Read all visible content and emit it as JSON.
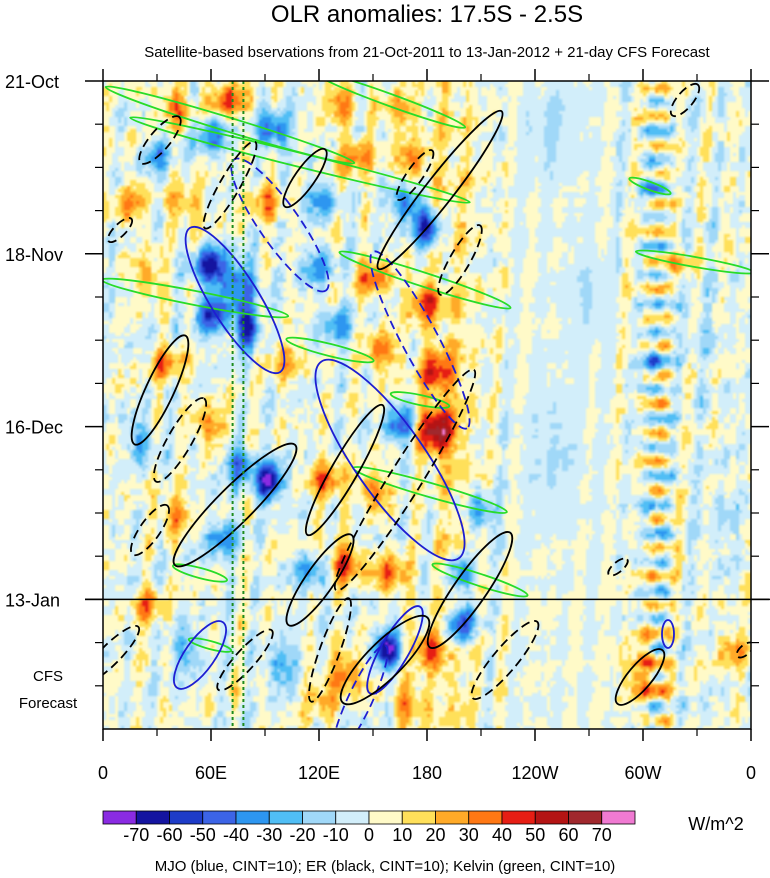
{
  "chart_data": {
    "type": "heatmap",
    "title": "OLR anomalies: 17.5S - 2.5S",
    "subtitle": "Satellite-based bservations from 21-Oct-2011 to 13-Jan-2012 + 21-day CFS Forecast",
    "x_ticks": [
      {
        "lon": 0,
        "label": "0"
      },
      {
        "lon": 60,
        "label": "60E"
      },
      {
        "lon": 120,
        "label": "120E"
      },
      {
        "lon": 180,
        "label": "180"
      },
      {
        "lon": 240,
        "label": "120W"
      },
      {
        "lon": 300,
        "label": "60W"
      },
      {
        "lon": 360,
        "label": "0"
      }
    ],
    "x_range": [
      0,
      360
    ],
    "y_range_days": [
      0,
      105
    ],
    "y_ticks": [
      {
        "day": 0,
        "label": "21-Oct"
      },
      {
        "day": 28,
        "label": "18-Nov"
      },
      {
        "day": 56,
        "label": "16-Dec"
      },
      {
        "day": 84,
        "label": "13-Jan"
      }
    ],
    "forecast_start_day": 84,
    "forecast_label_1": "CFS",
    "forecast_label_2": "Forecast",
    "reference_lines_lon": [
      72,
      78
    ],
    "colorbar": {
      "levels": [
        -70,
        -60,
        -50,
        -40,
        -30,
        -20,
        -10,
        0,
        10,
        20,
        30,
        40,
        50,
        60,
        70
      ],
      "labels": [
        "-70",
        "-60",
        "-50",
        "-40",
        "-30",
        "-20",
        "-10",
        "0",
        "10",
        "20",
        "30",
        "40",
        "50",
        "60",
        "70"
      ],
      "colors": [
        "#8a2be2",
        "#1414a0",
        "#1e3cc8",
        "#3c64e6",
        "#2d96f0",
        "#50bef5",
        "#a0d8f8",
        "#d2eefa",
        "#fffac8",
        "#ffe05a",
        "#ffaa28",
        "#ff7814",
        "#e61e14",
        "#b41414",
        "#a0282d",
        "#f07ad2"
      ],
      "units": "W/m^2"
    },
    "footer": "MJO (blue, CINT=10); ER (black, CINT=10); Kelvin (green, CINT=10)",
    "contour_colors": {
      "mjo": "#1e1ed2",
      "er": "#000000",
      "kelvin": "#28dc28"
    },
    "features": [
      {
        "lon": 40,
        "day": 4,
        "val": 32,
        "rlon": 9,
        "rday": 3
      },
      {
        "lon": 70,
        "day": 3,
        "val": 38,
        "rlon": 10,
        "rday": 3
      },
      {
        "lon": 130,
        "day": 3,
        "val": 30,
        "rlon": 9,
        "rday": 3
      },
      {
        "lon": 165,
        "day": 5,
        "val": 28,
        "rlon": 10,
        "rday": 3
      },
      {
        "lon": 30,
        "day": 12,
        "val": -28,
        "rlon": 8,
        "rday": 3
      },
      {
        "lon": 60,
        "day": 9,
        "val": -38,
        "rlon": 8,
        "rday": 3
      },
      {
        "lon": 95,
        "day": 8,
        "val": -48,
        "rlon": 9,
        "rday": 3
      },
      {
        "lon": 140,
        "day": 12,
        "val": 38,
        "rlon": 9,
        "rday": 3
      },
      {
        "lon": 172,
        "day": 13,
        "val": 32,
        "rlon": 9,
        "rday": 3
      },
      {
        "lon": 15,
        "day": 20,
        "val": 28,
        "rlon": 9,
        "rday": 3
      },
      {
        "lon": 45,
        "day": 20,
        "val": 30,
        "rlon": 9,
        "rday": 3
      },
      {
        "lon": 90,
        "day": 20,
        "val": 28,
        "rlon": 9,
        "rday": 3
      },
      {
        "lon": 120,
        "day": 19,
        "val": -32,
        "rlon": 9,
        "rday": 3
      },
      {
        "lon": 168,
        "day": 20,
        "val": -42,
        "rlon": 9,
        "rday": 3
      },
      {
        "lon": 180,
        "day": 24,
        "val": -58,
        "rlon": 7,
        "rday": 3
      },
      {
        "lon": 60,
        "day": 30,
        "val": -60,
        "rlon": 9,
        "rday": 3
      },
      {
        "lon": 75,
        "day": 33,
        "val": -45,
        "rlon": 10,
        "rday": 4
      },
      {
        "lon": 25,
        "day": 32,
        "val": 28,
        "rlon": 8,
        "rday": 3
      },
      {
        "lon": 120,
        "day": 30,
        "val": -28,
        "rlon": 10,
        "rday": 3
      },
      {
        "lon": 150,
        "day": 32,
        "val": 32,
        "rlon": 10,
        "rday": 3
      },
      {
        "lon": 178,
        "day": 36,
        "val": 42,
        "rlon": 9,
        "rday": 3
      },
      {
        "lon": 60,
        "day": 38,
        "val": -52,
        "rlon": 8,
        "rday": 3
      },
      {
        "lon": 80,
        "day": 40,
        "val": -70,
        "rlon": 7,
        "rday": 3
      },
      {
        "lon": 100,
        "day": 45,
        "val": 28,
        "rlon": 10,
        "rday": 3
      },
      {
        "lon": 130,
        "day": 40,
        "val": -30,
        "rlon": 9,
        "rday": 3
      },
      {
        "lon": 155,
        "day": 44,
        "val": 35,
        "rlon": 9,
        "rday": 3
      },
      {
        "lon": 35,
        "day": 46,
        "val": 30,
        "rlon": 9,
        "rday": 3
      },
      {
        "lon": 185,
        "day": 47,
        "val": 40,
        "rlon": 9,
        "rday": 4
      },
      {
        "lon": 185,
        "day": 57,
        "val": 58,
        "rlon": 10,
        "rday": 4
      },
      {
        "lon": 165,
        "day": 56,
        "val": -48,
        "rlon": 8,
        "rday": 3
      },
      {
        "lon": 60,
        "day": 56,
        "val": 32,
        "rlon": 9,
        "rday": 3
      },
      {
        "lon": 20,
        "day": 58,
        "val": -28,
        "rlon": 8,
        "rday": 3
      },
      {
        "lon": 92,
        "day": 65,
        "val": -70,
        "rlon": 8,
        "rday": 3
      },
      {
        "lon": 75,
        "day": 62,
        "val": -40,
        "rlon": 9,
        "rday": 3
      },
      {
        "lon": 125,
        "day": 65,
        "val": 38,
        "rlon": 9,
        "rday": 3
      },
      {
        "lon": 150,
        "day": 66,
        "val": 35,
        "rlon": 9,
        "rday": 3
      },
      {
        "lon": 210,
        "day": 70,
        "val": -35,
        "rlon": 8,
        "rday": 3
      },
      {
        "lon": 40,
        "day": 70,
        "val": 32,
        "rlon": 9,
        "rday": 3
      },
      {
        "lon": 65,
        "day": 74,
        "val": -35,
        "rlon": 9,
        "rday": 3
      },
      {
        "lon": 135,
        "day": 78,
        "val": 45,
        "rlon": 9,
        "rday": 3
      },
      {
        "lon": 160,
        "day": 80,
        "val": 38,
        "rlon": 9,
        "rday": 3
      },
      {
        "lon": 200,
        "day": 80,
        "val": -40,
        "rlon": 8,
        "rday": 3
      },
      {
        "lon": 115,
        "day": 80,
        "val": -30,
        "rlon": 9,
        "rday": 3
      },
      {
        "lon": 25,
        "day": 85,
        "val": 28,
        "rlon": 9,
        "rday": 3
      },
      {
        "lon": 200,
        "day": 88,
        "val": -58,
        "rlon": 8,
        "rday": 3
      },
      {
        "lon": 180,
        "day": 92,
        "val": 40,
        "rlon": 9,
        "rday": 3
      },
      {
        "lon": 158,
        "day": 92,
        "val": -70,
        "rlon": 7,
        "rday": 3
      },
      {
        "lon": 135,
        "day": 96,
        "val": 38,
        "rlon": 9,
        "rday": 3
      },
      {
        "lon": 100,
        "day": 95,
        "val": -32,
        "rlon": 9,
        "rday": 3
      },
      {
        "lon": 45,
        "day": 92,
        "val": -28,
        "rlon": 9,
        "rday": 3
      },
      {
        "lon": 300,
        "day": 96,
        "val": 28,
        "rlon": 12,
        "rday": 4
      },
      {
        "lon": 350,
        "day": 92,
        "val": 22,
        "rlon": 9,
        "rday": 3
      },
      {
        "lon": 170,
        "day": 101,
        "val": 32,
        "rlon": 9,
        "rday": 3
      },
      {
        "lon": 120,
        "day": 100,
        "val": 25,
        "rlon": 9,
        "rday": 3
      },
      {
        "lon": 250,
        "day": 8,
        "val": -12,
        "rlon": 15,
        "rday": 8
      },
      {
        "lon": 250,
        "day": 60,
        "val": -12,
        "rlon": 15,
        "rday": 10
      },
      {
        "lon": 270,
        "day": 35,
        "val": -10,
        "rlon": 12,
        "rday": 8
      },
      {
        "lon": 330,
        "day": 40,
        "val": -10,
        "rlon": 12,
        "rday": 8
      },
      {
        "lon": 345,
        "day": 70,
        "val": -8,
        "rlon": 12,
        "rday": 8
      },
      {
        "lon": 305,
        "day": 16,
        "val": -22,
        "rlon": 5,
        "rday": 3
      },
      {
        "lon": 305,
        "day": 45,
        "val": -25,
        "rlon": 5,
        "rday": 3
      },
      {
        "lon": 302,
        "day": 70,
        "val": -20,
        "rlon": 5,
        "rday": 3
      },
      {
        "lon": 320,
        "day": 30,
        "val": 25,
        "rlon": 5,
        "rday": 3
      }
    ]
  }
}
